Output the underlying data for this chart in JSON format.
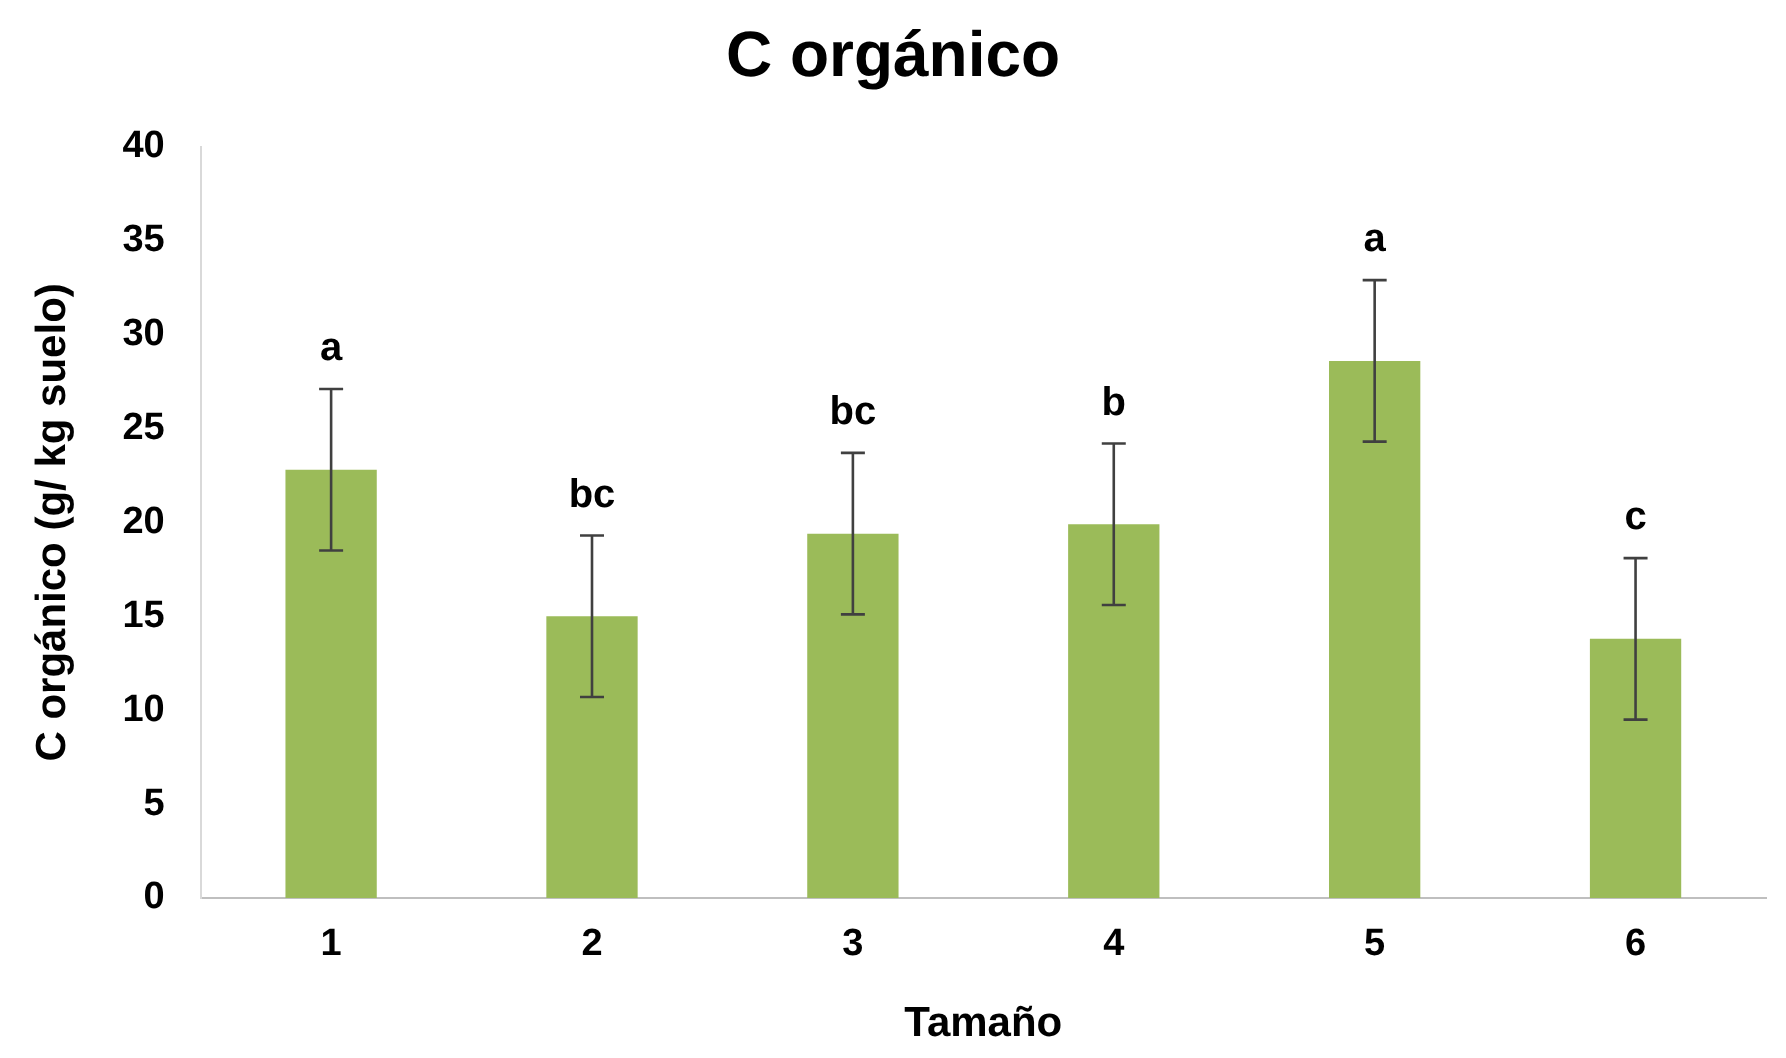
{
  "chart_data": {
    "type": "bar",
    "title": "C orgánico",
    "xlabel": "Tamaño",
    "ylabel": "C orgánico (g/ kg suelo)",
    "categories": [
      "1",
      "2",
      "3",
      "4",
      "5",
      "6"
    ],
    "values": [
      22.8,
      15.0,
      19.4,
      19.9,
      28.6,
      13.8
    ],
    "errors": [
      4.3,
      4.3,
      4.3,
      4.3,
      4.3,
      4.3
    ],
    "color": "#9bbb59",
    "ylim": [
      0,
      40
    ],
    "yticks": [
      0,
      5,
      10,
      15,
      20,
      25,
      30,
      35,
      40
    ],
    "grid": false,
    "legend": false,
    "annotations": [
      {
        "text": "a",
        "x": "1",
        "y": 27.1
      },
      {
        "text": "bc",
        "x": "2",
        "y": 19.3
      },
      {
        "text": "bc",
        "x": "3",
        "y": 23.7
      },
      {
        "text": "b",
        "x": "4",
        "y": 24.2
      },
      {
        "text": "a",
        "x": "5",
        "y": 32.9
      },
      {
        "text": "c",
        "x": "6",
        "y": 18.1
      }
    ]
  }
}
